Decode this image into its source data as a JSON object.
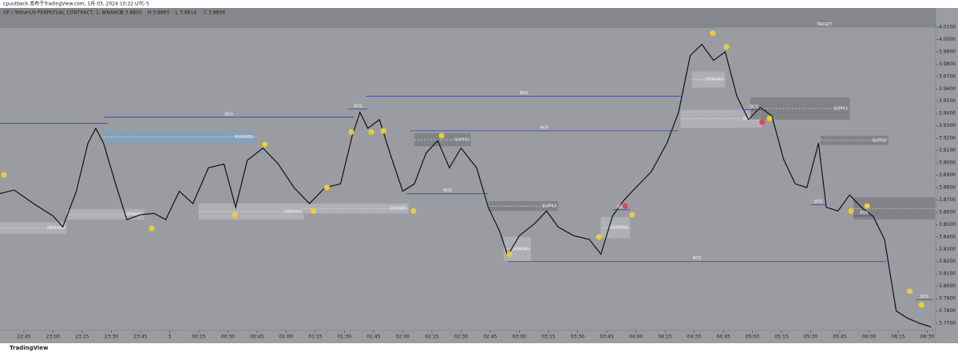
{
  "header": {
    "publisher": "cpuutback 发布于TradingView.com, 1月 03, 2024 10:22 UTC-5",
    "legend": [
      "O 3.8850",
      "H 3.8865",
      "L 3.8814",
      "C 3.8856"
    ],
    "logo": "TradingView"
  },
  "chart_data": {
    "type": "line",
    "title": "OP / TetherUS PERPETUAL CONTRACT, 1, BINANCE",
    "color": "#111111",
    "x": [
      0,
      10,
      20,
      30,
      35,
      42,
      48,
      52,
      56,
      62,
      68,
      75,
      82,
      88,
      95,
      102,
      110,
      118,
      124,
      130,
      138,
      146,
      154,
      162,
      170,
      178,
      184,
      188,
      192,
      198,
      204,
      210,
      216,
      222,
      228,
      234,
      240,
      248,
      254,
      260,
      264,
      270,
      278,
      284,
      290,
      298,
      306,
      312,
      318,
      324,
      330,
      338,
      346,
      352,
      358,
      364,
      370,
      376,
      382,
      388,
      394,
      400,
      406,
      412,
      418,
      424,
      428,
      434,
      440,
      446,
      452,
      458,
      464,
      470,
      476,
      482
    ],
    "values": [
      3.874,
      3.878,
      3.867,
      3.857,
      3.848,
      3.877,
      3.916,
      3.928,
      3.916,
      3.884,
      3.854,
      3.858,
      3.859,
      3.854,
      3.877,
      3.867,
      3.896,
      3.899,
      3.864,
      3.902,
      3.912,
      3.899,
      3.88,
      3.867,
      3.88,
      3.883,
      3.922,
      3.941,
      3.928,
      3.935,
      3.905,
      3.877,
      3.883,
      3.908,
      3.918,
      3.896,
      3.912,
      3.896,
      3.864,
      3.844,
      3.825,
      3.841,
      3.851,
      3.861,
      3.848,
      3.841,
      3.838,
      3.826,
      3.857,
      3.87,
      3.88,
      3.893,
      3.916,
      3.941,
      3.987,
      3.996,
      3.983,
      3.99,
      3.954,
      3.935,
      3.945,
      3.938,
      3.903,
      3.883,
      3.88,
      3.916,
      3.864,
      3.861,
      3.874,
      3.864,
      3.857,
      3.838,
      3.78,
      3.774,
      3.77,
      3.767
    ],
    "xlim": [
      2.7,
      484.3
    ],
    "ylim": [
      3.7642,
      4.0255
    ],
    "xticks": [
      {
        "value": 15,
        "label": "22:45"
      },
      {
        "value": 30,
        "label": "23:00"
      },
      {
        "value": 45,
        "label": "23:15"
      },
      {
        "value": 60,
        "label": "23:30"
      },
      {
        "value": 75,
        "label": "23:45"
      },
      {
        "value": 90,
        "label": "3"
      },
      {
        "value": 105,
        "label": "00:15"
      },
      {
        "value": 120,
        "label": "00:30"
      },
      {
        "value": 135,
        "label": "00:45"
      },
      {
        "value": 150,
        "label": "01:00"
      },
      {
        "value": 165,
        "label": "01:15"
      },
      {
        "value": 180,
        "label": "01:30"
      },
      {
        "value": 195,
        "label": "01:45"
      },
      {
        "value": 210,
        "label": "02:00"
      },
      {
        "value": 225,
        "label": "02:15"
      },
      {
        "value": 240,
        "label": "02:30"
      },
      {
        "value": 255,
        "label": "02:45"
      },
      {
        "value": 270,
        "label": "03:00"
      },
      {
        "value": 285,
        "label": "03:15"
      },
      {
        "value": 300,
        "label": "03:30"
      },
      {
        "value": 315,
        "label": "03:45"
      },
      {
        "value": 330,
        "label": "04:00"
      },
      {
        "value": 345,
        "label": "04:15"
      },
      {
        "value": 360,
        "label": "04:30"
      },
      {
        "value": 375,
        "label": "04:45"
      },
      {
        "value": 390,
        "label": "05:00"
      },
      {
        "value": 405,
        "label": "05:15"
      },
      {
        "value": 420,
        "label": "05:30"
      },
      {
        "value": 435,
        "label": "05:45"
      },
      {
        "value": 450,
        "label": "06:00"
      },
      {
        "value": 465,
        "label": "06:15"
      },
      {
        "value": 480,
        "label": "06:30"
      }
    ],
    "yticks": [
      {
        "value": 3.77,
        "label": "3.7700"
      },
      {
        "value": 3.78,
        "label": "3.7800"
      },
      {
        "value": 3.79,
        "label": "3.7900"
      },
      {
        "value": 3.8,
        "label": "3.8000"
      },
      {
        "value": 3.81,
        "label": "3.8100"
      },
      {
        "value": 3.82,
        "label": "3.8200"
      },
      {
        "value": 3.83,
        "label": "3.8300"
      },
      {
        "value": 3.84,
        "label": "3.8400"
      },
      {
        "value": 3.85,
        "label": "3.8500"
      },
      {
        "value": 3.86,
        "label": "3.8600"
      },
      {
        "value": 3.87,
        "label": "3.8700"
      },
      {
        "value": 3.88,
        "label": "3.8800"
      },
      {
        "value": 3.89,
        "label": "3.8900"
      },
      {
        "value": 3.9,
        "label": "3.9000"
      },
      {
        "value": 3.91,
        "label": "3.9100"
      },
      {
        "value": 3.92,
        "label": "3.9200"
      },
      {
        "value": 3.93,
        "label": "3.9300"
      },
      {
        "value": 3.94,
        "label": "3.9400"
      },
      {
        "value": 3.95,
        "label": "3.9500"
      },
      {
        "value": 3.96,
        "label": "3.9600"
      },
      {
        "value": 3.97,
        "label": "3.9700"
      },
      {
        "value": 3.98,
        "label": "3.9800"
      },
      {
        "value": 3.99,
        "label": "3.9900"
      },
      {
        "value": 4.0,
        "label": "4.0000"
      },
      {
        "value": 4.01,
        "label": "4.0100"
      }
    ],
    "zones": [
      {
        "label": "DEMAND",
        "x": [
          1,
          37
        ],
        "y": [
          3.8425,
          3.852
        ],
        "color": "#b4b5ba"
      },
      {
        "label": "DEMAND",
        "x": [
          37,
          77
        ],
        "y": [
          3.854,
          3.8625
        ],
        "color": "#b4b5ba"
      },
      {
        "label": "BREAKER",
        "x": [
          56,
          134
        ],
        "y": [
          3.9155,
          3.9265
        ],
        "color": "#7fa3bf"
      },
      {
        "label": "DEMAND",
        "x": [
          105,
          159
        ],
        "y": [
          3.854,
          3.867
        ],
        "color": "#b4b5ba"
      },
      {
        "label": "DEMAND",
        "x": [
          159,
          213
        ],
        "y": [
          3.859,
          3.867
        ],
        "color": "#b4b5ba"
      },
      {
        "label": "SUPPLY",
        "x": [
          216,
          245
        ],
        "y": [
          3.9135,
          3.924
        ],
        "color": "#7c7d82"
      },
      {
        "label": "SUPPLY",
        "x": [
          254,
          290
        ],
        "y": [
          3.861,
          3.869
        ],
        "color": "#7c7d82"
      },
      {
        "label": "DEMAND",
        "x": [
          262,
          276
        ],
        "y": [
          3.8205,
          3.84
        ],
        "color": "#b4b5ba"
      },
      {
        "label": "DEMAND",
        "x": [
          312,
          327
        ],
        "y": [
          3.839,
          3.856
        ],
        "color": "#b4b5ba"
      },
      {
        "label": "DEMAND",
        "x": [
          359,
          376
        ],
        "y": [
          3.961,
          3.974
        ],
        "color": "#b4b5ba"
      },
      {
        "label": "DEMAND",
        "x": [
          353,
          395
        ],
        "y": [
          3.9285,
          3.943
        ],
        "color": "#b4b5ba"
      },
      {
        "label": "SUPPLY",
        "x": [
          389,
          440
        ],
        "y": [
          3.935,
          3.953
        ],
        "color": "#7c7d82"
      },
      {
        "label": "SUPPLY",
        "x": [
          425,
          460
        ],
        "y": [
          3.9145,
          3.922
        ],
        "color": "#7c7d82"
      },
      {
        "x": [
          442,
          484
        ],
        "y": [
          3.854,
          3.872
        ],
        "color": "#7c7d82"
      }
    ],
    "levels": [
      {
        "x": [
          1,
          58
        ],
        "y": 3.932,
        "color": "#3b3fa6"
      },
      {
        "label": "BOS",
        "x": [
          56,
          185
        ],
        "y": 3.937,
        "color": "#3b3fa6"
      },
      {
        "label": "BOS",
        "x": [
          182,
          192
        ],
        "y": 3.9435,
        "color": "#3b3fa6"
      },
      {
        "label": "BOS",
        "x": [
          191,
          354
        ],
        "y": 3.954,
        "color": "#3b3fa6"
      },
      {
        "label": "BOS",
        "x": [
          214,
          352
        ],
        "y": 3.926,
        "color": "#3b3fa6"
      },
      {
        "label": "BOS",
        "x": [
          212,
          254
        ],
        "y": 3.875,
        "color": "#3b3fa6"
      },
      {
        "label": "BOS",
        "x": [
          264,
          459
        ],
        "y": 3.82,
        "color": "#3b3fa6"
      },
      {
        "label": "BOS",
        "x": [
          318,
          327
        ],
        "y": 3.862,
        "color": "#3b3fa6"
      },
      {
        "label": "BOS",
        "x": [
          385,
          397
        ],
        "y": 3.943,
        "color": "#3b3fa6"
      },
      {
        "label": "BOS",
        "x": [
          420,
          428
        ],
        "y": 3.866,
        "color": "#3b3fa6"
      },
      {
        "label": "BOS",
        "x": [
          442,
          453
        ],
        "y": 3.857,
        "color": "#3b3fa6"
      },
      {
        "label": "BOS",
        "x": [
          474,
          483
        ],
        "y": 3.789,
        "color": "#3b3fa6"
      },
      {
        "label": "TARGET",
        "x": [
          370,
          484
        ],
        "y": 4.0095,
        "color": "#5fb89a"
      }
    ],
    "markers": [
      {
        "x": 4.7,
        "y": 3.8903,
        "color": "#e8cf3a"
      },
      {
        "x": 80.8,
        "y": 3.847,
        "color": "#e8cf3a"
      },
      {
        "x": 123.5,
        "y": 3.858,
        "color": "#e8cf3a"
      },
      {
        "x": 139,
        "y": 3.915,
        "color": "#e8cf3a"
      },
      {
        "x": 164,
        "y": 3.861,
        "color": "#e8cf3a"
      },
      {
        "x": 171,
        "y": 3.88,
        "color": "#e8cf3a"
      },
      {
        "x": 183.5,
        "y": 3.925,
        "color": "#e8cf3a"
      },
      {
        "x": 193.8,
        "y": 3.925,
        "color": "#e8cf3a"
      },
      {
        "x": 200,
        "y": 3.926,
        "color": "#e8cf3a"
      },
      {
        "x": 215.5,
        "y": 3.861,
        "color": "#e8cf3a"
      },
      {
        "x": 230,
        "y": 3.922,
        "color": "#e8cf3a"
      },
      {
        "x": 265,
        "y": 3.826,
        "color": "#e8cf3a"
      },
      {
        "x": 311,
        "y": 3.84,
        "color": "#e8cf3a"
      },
      {
        "x": 328,
        "y": 3.858,
        "color": "#e8cf3a"
      },
      {
        "x": 369.6,
        "y": 4.005,
        "color": "#e8cf3a"
      },
      {
        "x": 376.6,
        "y": 3.994,
        "color": "#e8cf3a"
      },
      {
        "x": 398.8,
        "y": 3.936,
        "color": "#e8cf3a"
      },
      {
        "x": 440.7,
        "y": 3.861,
        "color": "#e8cf3a"
      },
      {
        "x": 449,
        "y": 3.865,
        "color": "#e8cf3a"
      },
      {
        "x": 471,
        "y": 3.796,
        "color": "#e8cf3a"
      },
      {
        "x": 477,
        "y": 3.785,
        "color": "#e8cf3a"
      },
      {
        "x": 324.5,
        "y": 3.865,
        "color": "#e0455a"
      },
      {
        "x": 395,
        "y": 3.933,
        "color": "#e0455a"
      }
    ]
  }
}
